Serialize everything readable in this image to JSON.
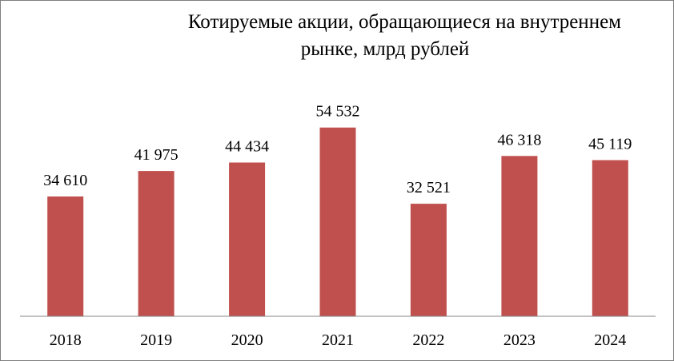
{
  "chart_data": {
    "type": "bar",
    "title_line1": "Котируемые акции, обращающиеся на внутреннем",
    "title_line2": "рынке, млрд рублей",
    "categories": [
      "2018",
      "2019",
      "2020",
      "2021",
      "2022",
      "2023",
      "2024"
    ],
    "values": [
      34610,
      41975,
      44434,
      54532,
      32521,
      46318,
      45119
    ],
    "data_labels": [
      "34 610",
      "41 975",
      "44 434",
      "54 532",
      "32 521",
      "46 318",
      "45 119"
    ],
    "ylim": [
      0,
      60000
    ],
    "grid": false,
    "legend": "none",
    "colors": {
      "bar": "#c0504d",
      "axis": "#868686",
      "frame": "#7f7f7f"
    }
  }
}
